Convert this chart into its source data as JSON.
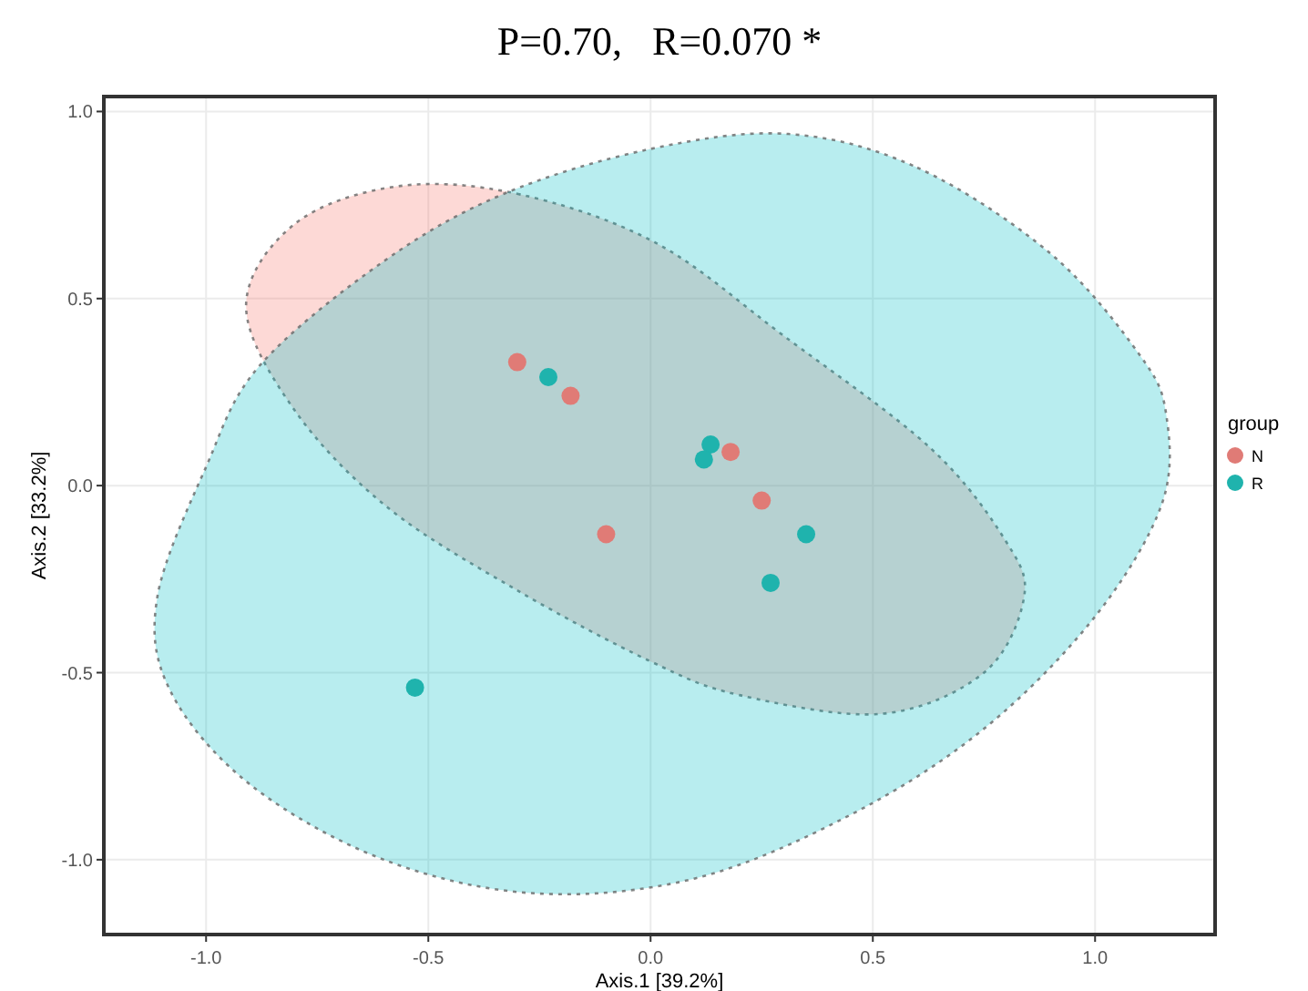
{
  "chart_data": {
    "type": "scatter",
    "title": "P=0.70,   R=0.070 *",
    "xlabel": "Axis.1   [39.2%]",
    "ylabel": "Axis.2   [33.2%]",
    "legend_title": "group",
    "legend": "right",
    "grid": true,
    "marker": "circle",
    "xlim": [
      -1.23,
      1.27
    ],
    "ylim": [
      -1.2,
      1.04
    ],
    "xticks": [
      {
        "value": -1,
        "label": "-1.0"
      },
      {
        "value": -0.5,
        "label": "-0.5"
      },
      {
        "value": 0,
        "label": "0.0"
      },
      {
        "value": 0.5,
        "label": "0.5"
      },
      {
        "value": 1,
        "label": "1.0"
      }
    ],
    "yticks": [
      {
        "value": -1,
        "label": "-1.0"
      },
      {
        "value": -0.5,
        "label": "-0.5"
      },
      {
        "value": 0,
        "label": "0.0"
      },
      {
        "value": 0.5,
        "label": "0.5"
      },
      {
        "value": 1,
        "label": "1.0"
      }
    ],
    "series": [
      {
        "type": "area",
        "color": "#f8766d",
        "line_style": "dotted",
        "marker": "none",
        "x": [
          -0.57,
          -0.3,
          0.01,
          0.3,
          0.63,
          0.8,
          0.84,
          0.75,
          0.52,
          0.2,
          0.0,
          -0.3,
          -0.59,
          -0.8,
          -0.91,
          -0.8
        ],
        "values": [
          0.8,
          0.78,
          0.65,
          0.4,
          0.1,
          -0.15,
          -0.3,
          -0.5,
          -0.61,
          -0.56,
          -0.47,
          -0.28,
          -0.06,
          0.2,
          0.48,
          0.7
        ]
      },
      {
        "type": "area",
        "color": "#00bfc4",
        "line_style": "dotted",
        "marker": "none",
        "x": [
          0.31,
          0.6,
          0.9,
          1.1,
          1.16,
          1.15,
          1.0,
          0.75,
          0.45,
          0.1,
          -0.26,
          -0.6,
          -0.9,
          -1.08,
          -1.11,
          -1.0,
          -0.88,
          -0.6,
          -0.33,
          0.0
        ],
        "values": [
          0.94,
          0.85,
          0.62,
          0.35,
          0.19,
          -0.05,
          -0.35,
          -0.65,
          -0.88,
          -1.05,
          -1.09,
          -1.0,
          -0.8,
          -0.55,
          -0.3,
          0.05,
          0.32,
          0.6,
          0.78,
          0.9
        ]
      },
      {
        "name": "N",
        "color": "#e07b76",
        "x": [
          -0.3,
          -0.18,
          0.18,
          0.25,
          -0.1
        ],
        "values": [
          0.33,
          0.24,
          0.09,
          -0.04,
          -0.13
        ]
      },
      {
        "name": "R",
        "color": "#1fb3ad",
        "x": [
          -0.23,
          0.135,
          0.12,
          0.35,
          0.27,
          -0.53
        ],
        "values": [
          0.29,
          0.11,
          0.07,
          -0.13,
          -0.26,
          -0.54
        ]
      }
    ]
  }
}
